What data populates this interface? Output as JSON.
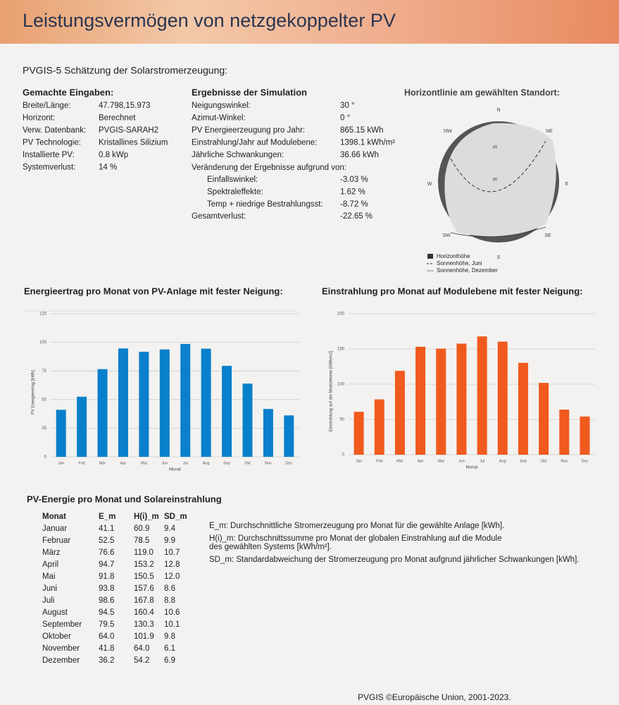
{
  "header": {
    "title": "Leistungsvermögen von netzgekoppelter PV",
    "subtitle": "PVGIS-5 Schätzung der Solarstromerzeugung:"
  },
  "inputs": {
    "title": "Gemachte Eingaben:",
    "rows": [
      [
        "Breite/Länge:",
        "47.798,15.973"
      ],
      [
        "Horizont:",
        "Berechnet"
      ],
      [
        "Verw. Datenbank:",
        "PVGIS-SARAH2"
      ],
      [
        "PV Technologie:",
        "Kristallines Silizium"
      ],
      [
        "Installierte PV:",
        "0.8 kWp"
      ],
      [
        "Systemverlust:",
        "14 %"
      ]
    ]
  },
  "results": {
    "title": "Ergebnisse der Simulation",
    "rows": [
      [
        "Neigungswinkel:",
        "30 °"
      ],
      [
        "Azimut-Winkel:",
        "0 °"
      ],
      [
        "PV Energieerzeugung pro Jahr:",
        "865.15 kWh"
      ],
      [
        "Einstrahlung/Jahr auf Modulebene:",
        "1398.1 kWh/m²"
      ],
      [
        "Jährliche Schwankungen:",
        "36.66 kWh"
      ]
    ],
    "changes_title": "Veränderung der Ergebnisse aufgrund von:",
    "changes": [
      [
        "Einfallswinkel:",
        "-3.03 %"
      ],
      [
        "Spektraleffekte:",
        "1.62 %"
      ],
      [
        "Temp + niedrige Bestrahlungsst:",
        "-8.72 %"
      ]
    ],
    "total": [
      "Gesamtverlust:",
      "-22.65 %"
    ]
  },
  "horizon": {
    "title": "Horizontlinie am gewählten Standort:",
    "compass": [
      "N",
      "NE",
      "E",
      "SE",
      "S",
      "SW",
      "W",
      "NW"
    ],
    "rings": [
      "45",
      "90"
    ],
    "legend": [
      "Horizonthöhe",
      "Sonnenhöhe, Juni",
      "Sonnenhöhe, Dezember"
    ]
  },
  "charts": [
    {
      "type": "bar",
      "title": "Energieertrag pro Monat von PV-Anlage mit fester Neigung:",
      "ylabel": "PV Energieertrag [kWh]",
      "xlabel": "Monat",
      "color": "#0a80cc",
      "categories": [
        "Jan",
        "Feb",
        "Mär",
        "Apr",
        "Mai",
        "Jun",
        "Jul",
        "Aug",
        "Sep",
        "Okt",
        "Nov",
        "Dez"
      ],
      "values": [
        41.1,
        52.5,
        76.6,
        94.7,
        91.8,
        93.8,
        98.6,
        94.5,
        79.5,
        64.0,
        41.8,
        36.2
      ],
      "ylim": [
        0,
        125
      ],
      "yticks": [
        0,
        25,
        50,
        75,
        100,
        125
      ],
      "grid": true
    },
    {
      "type": "bar",
      "title": "Einstrahlung pro Monat auf Modulebene mit fester Neigung:",
      "ylabel": "Einstrahlung auf die Modulebene [kWh/m2]",
      "xlabel": "Monat",
      "color": "#f05a1e",
      "categories": [
        "Jan",
        "Feb",
        "Mär",
        "Apr",
        "Mai",
        "Jun",
        "Jul",
        "Aug",
        "Sep",
        "Okt",
        "Nov",
        "Dez"
      ],
      "values": [
        60.9,
        78.5,
        119.0,
        153.2,
        150.5,
        157.6,
        167.8,
        160.4,
        130.3,
        101.9,
        64.0,
        54.2
      ],
      "ylim": [
        0,
        200
      ],
      "yticks": [
        0,
        50,
        100,
        150,
        200
      ],
      "grid": true
    }
  ],
  "table": {
    "title": "PV-Energie pro Monat und Solareinstrahlung",
    "header": [
      "Monat",
      "E_m",
      "H(i)_m",
      "SD_m"
    ],
    "rows": [
      [
        "Januar",
        "41.1",
        "60.9",
        "9.4"
      ],
      [
        "Februar",
        "52.5",
        "78.5",
        "9.9"
      ],
      [
        "März",
        "76.6",
        "119.0",
        "10.7"
      ],
      [
        "April",
        "94.7",
        "153.2",
        "12.8"
      ],
      [
        "Mai",
        "91.8",
        "150.5",
        "12.0"
      ],
      [
        "Juni",
        "93.8",
        "157.6",
        "8.6"
      ],
      [
        "Juli",
        "98.6",
        "167.8",
        "8.8"
      ],
      [
        "August",
        "94.5",
        "160.4",
        "10.6"
      ],
      [
        "September",
        "79.5",
        "130.3",
        "10.1"
      ],
      [
        "Oktober",
        "64.0",
        "101.9",
        "9.8"
      ],
      [
        "November",
        "41.8",
        "64.0",
        "6.1"
      ],
      [
        "Dezember",
        "36.2",
        "54.2",
        "6.9"
      ]
    ]
  },
  "notes": [
    [
      "E_m: Durchschnittliche Stromerzeugung pro Monat für die gewählte Anlage [kWh]."
    ],
    [
      "H(i)_m: Durchschnittssumme pro Monat der globalen Einstrahlung auf die Module",
      "des gewählten Systems [kWh/m²]."
    ],
    [
      "SD_m: Standardabweichung der Stromerzeugung pro Monat aufgrund jährlicher Schwankungen [kWh]."
    ]
  ],
  "footer": "PVGIS ©Europäische Union, 2001-2023."
}
